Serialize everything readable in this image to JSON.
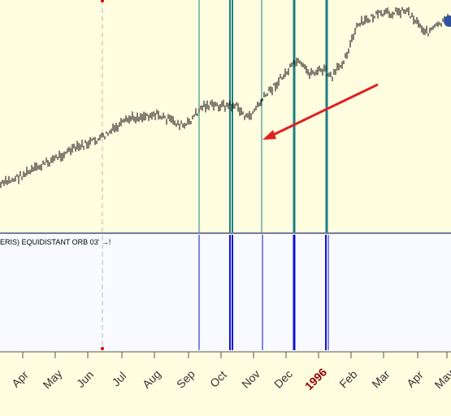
{
  "indicator_label": "ERIS) EQUIDISTANT ORB 03' →!",
  "time_axis": {
    "labels": [
      "Apr",
      "May",
      "Jun",
      "Jul",
      "Aug",
      "Sep",
      "Oct",
      "Nov",
      "Dec",
      "1996",
      "Feb",
      "Mar",
      "Apr",
      "May"
    ]
  }
}
